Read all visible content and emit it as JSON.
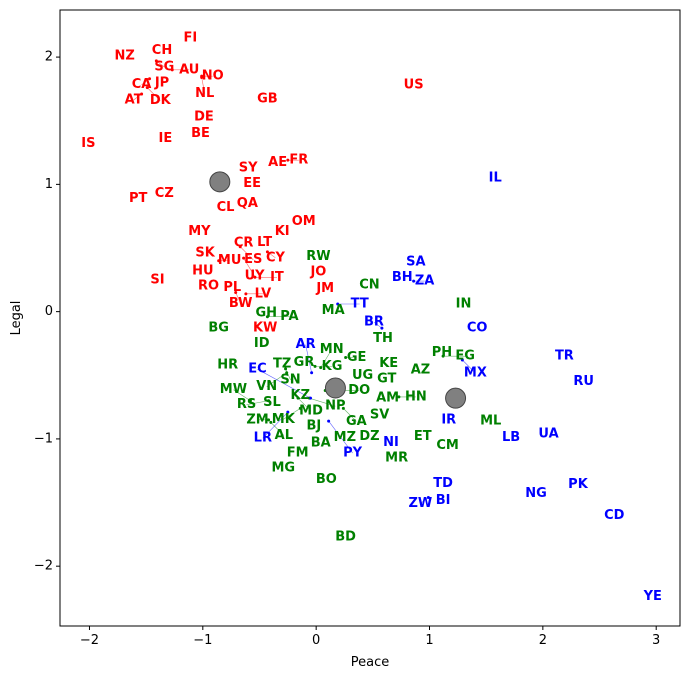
{
  "chart_data": {
    "type": "scatter",
    "title": "",
    "xlabel": "Peace",
    "ylabel": "Legal",
    "xlim": [
      -2.26,
      3.21
    ],
    "ylim": [
      -2.47,
      2.37
    ],
    "xticks": [
      -2,
      -1,
      0,
      1,
      2,
      3
    ],
    "xtick_labels": [
      "−2",
      "−1",
      "0",
      "1",
      "2",
      "3"
    ],
    "yticks": [
      -2,
      -1,
      0,
      1,
      2
    ],
    "ytick_labels": [
      "−2",
      "−1",
      "0",
      "1",
      "2"
    ],
    "grid": false,
    "series": [
      {
        "color": "#ff0000",
        "points": [
          {
            "label": "FI",
            "x": -1.11,
            "y": 2.15
          },
          {
            "label": "NZ",
            "x": -1.69,
            "y": 2.01
          },
          {
            "label": "CH",
            "x": -1.36,
            "y": 2.05
          },
          {
            "label": "SG",
            "x": -1.41,
            "y": 1.97
          },
          {
            "label": "AU",
            "x": -1.27,
            "y": 1.9
          },
          {
            "label": "JP",
            "x": -1.36,
            "y": 1.86
          },
          {
            "label": "CA",
            "x": -1.47,
            "y": 1.83
          },
          {
            "label": "DK",
            "x": -1.49,
            "y": 1.76
          },
          {
            "label": "AT",
            "x": -1.54,
            "y": 1.71
          },
          {
            "label": "NO",
            "x": -1.01,
            "y": 1.85
          },
          {
            "label": "NL",
            "x": -1.01,
            "y": 1.84
          },
          {
            "label": "US",
            "x": 0.86,
            "y": 1.78
          },
          {
            "label": "GB",
            "x": -0.43,
            "y": 1.67
          },
          {
            "label": "DE",
            "x": -0.99,
            "y": 1.53
          },
          {
            "label": "BE",
            "x": -1.02,
            "y": 1.4
          },
          {
            "label": "IE",
            "x": -1.33,
            "y": 1.36
          },
          {
            "label": "IS",
            "x": -2.01,
            "y": 1.32
          },
          {
            "label": "SY",
            "x": -0.6,
            "y": 1.13
          },
          {
            "label": "AE",
            "x": -0.34,
            "y": 1.17
          },
          {
            "label": "FR",
            "x": -0.25,
            "y": 1.19
          },
          {
            "label": "EE",
            "x": -0.6,
            "y": 1.03
          },
          {
            "label": "PT",
            "x": -1.57,
            "y": 0.89
          },
          {
            "label": "CZ",
            "x": -1.34,
            "y": 0.93
          },
          {
            "label": "CL",
            "x": -0.8,
            "y": 0.82
          },
          {
            "label": "QA",
            "x": -0.66,
            "y": 0.85
          },
          {
            "label": "OM",
            "x": -0.11,
            "y": 0.71
          },
          {
            "label": "MY",
            "x": -1.03,
            "y": 0.63
          },
          {
            "label": "KI",
            "x": -0.3,
            "y": 0.63
          },
          {
            "label": "CR",
            "x": -0.64,
            "y": 0.54
          },
          {
            "label": "ES",
            "x": -0.67,
            "y": 0.51
          },
          {
            "label": "LT",
            "x": -0.49,
            "y": 0.52
          },
          {
            "label": "CY",
            "x": -0.43,
            "y": 0.47
          },
          {
            "label": "SK",
            "x": -0.98,
            "y": 0.46
          },
          {
            "label": "MU",
            "x": -0.86,
            "y": 0.4
          },
          {
            "label": "UY",
            "x": -0.64,
            "y": 0.42
          },
          {
            "label": "HU",
            "x": -1.0,
            "y": 0.35
          },
          {
            "label": "JO",
            "x": 0.02,
            "y": 0.31
          },
          {
            "label": "SI",
            "x": -1.4,
            "y": 0.25
          },
          {
            "label": "IT",
            "x": -0.54,
            "y": 0.27
          },
          {
            "label": "RO",
            "x": -0.95,
            "y": 0.2
          },
          {
            "label": "PL",
            "x": -0.74,
            "y": 0.19
          },
          {
            "label": "BW",
            "x": -0.71,
            "y": 0.15
          },
          {
            "label": "LV",
            "x": -0.62,
            "y": 0.14
          },
          {
            "label": "JM",
            "x": 0.08,
            "y": 0.18
          },
          {
            "label": "KW",
            "x": -0.45,
            "y": -0.13
          }
        ]
      },
      {
        "color": "#008000",
        "points": [
          {
            "label": "RW",
            "x": 0.02,
            "y": 0.37
          },
          {
            "label": "CN",
            "x": 0.47,
            "y": 0.21
          },
          {
            "label": "GH",
            "x": -0.44,
            "y": -0.01
          },
          {
            "label": "PA",
            "x": -0.43,
            "y": -0.04
          },
          {
            "label": "MA",
            "x": 0.15,
            "y": 0.01
          },
          {
            "label": "IN",
            "x": 1.3,
            "y": 0.06
          },
          {
            "label": "BG",
            "x": -0.86,
            "y": -0.13
          },
          {
            "label": "ID",
            "x": -0.48,
            "y": -0.25
          },
          {
            "label": "TH",
            "x": 0.59,
            "y": -0.21
          },
          {
            "label": "PH",
            "x": 1.11,
            "y": -0.32
          },
          {
            "label": "EG",
            "x": 1.12,
            "y": -0.35
          },
          {
            "label": "HR",
            "x": -0.78,
            "y": -0.42
          },
          {
            "label": "TZ",
            "x": -0.3,
            "y": -0.41
          },
          {
            "label": "GR",
            "x": -0.16,
            "y": -0.4
          },
          {
            "label": "SN",
            "x": -0.27,
            "y": -0.45
          },
          {
            "label": "VN",
            "x": -0.26,
            "y": -0.48
          },
          {
            "label": "KG",
            "x": -0.01,
            "y": -0.43
          },
          {
            "label": "MN",
            "x": 0.04,
            "y": -0.44
          },
          {
            "label": "GE",
            "x": 0.26,
            "y": -0.36
          },
          {
            "label": "UG",
            "x": 0.41,
            "y": -0.5
          },
          {
            "label": "GT",
            "x": 0.57,
            "y": -0.53
          },
          {
            "label": "KE",
            "x": 0.64,
            "y": -0.44
          },
          {
            "label": "AZ",
            "x": 0.92,
            "y": -0.46
          },
          {
            "label": "AM",
            "x": 0.63,
            "y": -0.68
          },
          {
            "label": "HN",
            "x": 0.73,
            "y": -0.67
          },
          {
            "label": "SV",
            "x": 0.56,
            "y": -0.75
          },
          {
            "label": "SL",
            "x": -0.39,
            "y": -0.65
          },
          {
            "label": "RS",
            "x": -0.42,
            "y": -0.7
          },
          {
            "label": "MW",
            "x": -0.58,
            "y": -0.7
          },
          {
            "label": "KZ",
            "x": -0.14,
            "y": -0.66
          },
          {
            "label": "MD",
            "x": -0.16,
            "y": -0.68
          },
          {
            "label": "NP",
            "x": -0.06,
            "y": -0.68
          },
          {
            "label": "DO",
            "x": 0.08,
            "y": -0.62
          },
          {
            "label": "MK",
            "x": -0.14,
            "y": -0.76
          },
          {
            "label": "GA",
            "x": 0.24,
            "y": -0.76
          },
          {
            "label": "ZM",
            "x": -0.42,
            "y": -0.85
          },
          {
            "label": "AL",
            "x": -0.4,
            "y": -0.87
          },
          {
            "label": "BJ",
            "x": -0.02,
            "y": -0.9
          },
          {
            "label": "BA",
            "x": 0.04,
            "y": -0.97
          },
          {
            "label": "MZ",
            "x": 0.2,
            "y": -0.99
          },
          {
            "label": "DZ",
            "x": 0.47,
            "y": -0.95
          },
          {
            "label": "ET",
            "x": 0.94,
            "y": -0.98
          },
          {
            "label": "CM",
            "x": 1.16,
            "y": -1.05
          },
          {
            "label": "ML",
            "x": 1.54,
            "y": -0.86
          },
          {
            "label": "FM",
            "x": -0.11,
            "y": -1.11
          },
          {
            "label": "MR",
            "x": 0.71,
            "y": -1.15
          },
          {
            "label": "MG",
            "x": -0.29,
            "y": -1.23
          },
          {
            "label": "BO",
            "x": 0.09,
            "y": -1.32
          },
          {
            "label": "BD",
            "x": 0.26,
            "y": -1.77
          }
        ]
      },
      {
        "color": "#0000ff",
        "points": [
          {
            "label": "IL",
            "x": 1.58,
            "y": 1.05
          },
          {
            "label": "SA",
            "x": 0.88,
            "y": 0.39
          },
          {
            "label": "BH",
            "x": 0.76,
            "y": 0.33
          },
          {
            "label": "ZA",
            "x": 0.86,
            "y": 0.24
          },
          {
            "label": "TT",
            "x": 0.19,
            "y": 0.06
          },
          {
            "label": "BR",
            "x": 0.58,
            "y": -0.13
          },
          {
            "label": "CO",
            "x": 1.42,
            "y": -0.13
          },
          {
            "label": "MX",
            "x": 1.29,
            "y": -0.38
          },
          {
            "label": "TR",
            "x": 2.19,
            "y": -0.35
          },
          {
            "label": "RU",
            "x": 2.36,
            "y": -0.55
          },
          {
            "label": "AR",
            "x": -0.04,
            "y": -0.48
          },
          {
            "label": "EC",
            "x": -0.05,
            "y": -0.68
          },
          {
            "label": "LR",
            "x": -0.25,
            "y": -0.79
          },
          {
            "label": "PY",
            "x": 0.11,
            "y": -0.86
          },
          {
            "label": "IR",
            "x": 1.17,
            "y": -0.85
          },
          {
            "label": "NI",
            "x": 0.66,
            "y": -1.03
          },
          {
            "label": "LB",
            "x": 1.72,
            "y": -0.99
          },
          {
            "label": "UA",
            "x": 2.05,
            "y": -0.96
          },
          {
            "label": "TD",
            "x": 1.12,
            "y": -1.35
          },
          {
            "label": "BI",
            "x": 1.12,
            "y": -1.42
          },
          {
            "label": "ZW",
            "x": 0.99,
            "y": -1.46
          },
          {
            "label": "NG",
            "x": 1.94,
            "y": -1.43
          },
          {
            "label": "PK",
            "x": 2.31,
            "y": -1.36
          },
          {
            "label": "CD",
            "x": 2.63,
            "y": -1.6
          },
          {
            "label": "YE",
            "x": 2.97,
            "y": -2.24
          }
        ]
      }
    ],
    "centroids": {
      "color": "#808080",
      "points": [
        {
          "x": -0.85,
          "y": 1.02
        },
        {
          "x": 0.17,
          "y": -0.6
        },
        {
          "x": 1.23,
          "y": -0.68
        }
      ]
    }
  }
}
